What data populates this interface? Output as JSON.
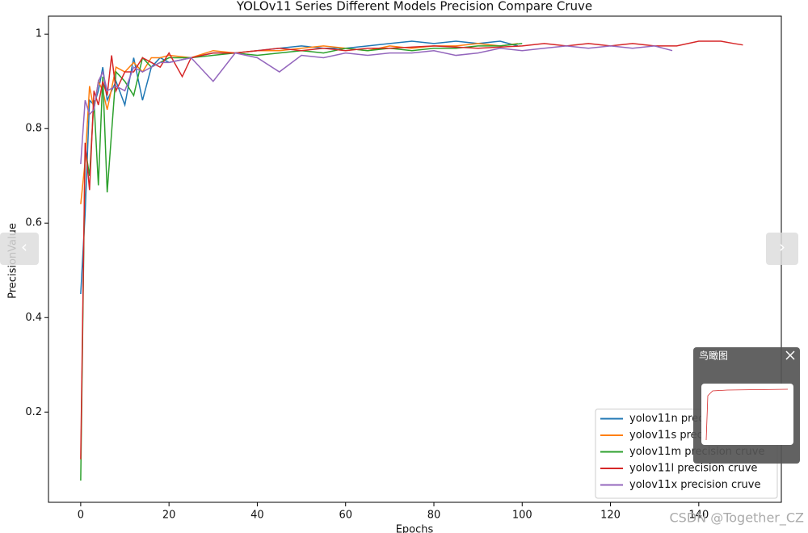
{
  "chart_data": {
    "type": "line",
    "title": "YOLOv11 Series Different Models Precision Compare Cruve",
    "x_label": "Epochs",
    "y_label": "PrecisionValue",
    "xlim": [
      -7.3,
      158.7
    ],
    "ylim": [
      0.009,
      1.038
    ],
    "xticks": [
      0,
      20,
      40,
      60,
      80,
      100,
      120,
      140
    ],
    "yticks": [
      0.2,
      0.4,
      0.6,
      0.8,
      1.0
    ],
    "legend": "lower right",
    "series": [
      {
        "name": "yolov11n precision cruve",
        "color": "#1f77b4",
        "x": [
          0,
          1,
          2,
          3,
          4,
          5,
          6,
          8,
          10,
          12,
          14,
          16,
          18,
          20,
          25,
          30,
          35,
          40,
          45,
          50,
          55,
          60,
          65,
          70,
          75,
          80,
          85,
          90,
          95,
          99
        ],
        "values": [
          0.45,
          0.62,
          0.86,
          0.85,
          0.88,
          0.93,
          0.86,
          0.9,
          0.85,
          0.95,
          0.86,
          0.93,
          0.95,
          0.94,
          0.95,
          0.96,
          0.96,
          0.965,
          0.97,
          0.975,
          0.97,
          0.97,
          0.975,
          0.98,
          0.985,
          0.98,
          0.985,
          0.98,
          0.985,
          0.975
        ]
      },
      {
        "name": "yolov11s precision cruve",
        "color": "#ff7f0e",
        "x": [
          0,
          1,
          2,
          3,
          4,
          5,
          6,
          8,
          10,
          12,
          14,
          16,
          18,
          20,
          25,
          30,
          35,
          40,
          45,
          50,
          55,
          60,
          65,
          70,
          75,
          80,
          85,
          90,
          95,
          99
        ],
        "values": [
          0.64,
          0.73,
          0.89,
          0.84,
          0.9,
          0.88,
          0.84,
          0.93,
          0.92,
          0.94,
          0.92,
          0.95,
          0.95,
          0.955,
          0.95,
          0.965,
          0.96,
          0.965,
          0.965,
          0.97,
          0.975,
          0.97,
          0.965,
          0.975,
          0.97,
          0.975,
          0.975,
          0.98,
          0.975,
          0.98
        ]
      },
      {
        "name": "yolov11m precision cruve",
        "color": "#2ca02c",
        "x": [
          0,
          1,
          2,
          3,
          4,
          5,
          6,
          8,
          10,
          12,
          14,
          16,
          18,
          20,
          25,
          30,
          35,
          40,
          45,
          50,
          55,
          60,
          65,
          70,
          75,
          80,
          85,
          90,
          95,
          100
        ],
        "values": [
          0.055,
          0.76,
          0.7,
          0.86,
          0.68,
          0.91,
          0.665,
          0.92,
          0.9,
          0.87,
          0.95,
          0.93,
          0.94,
          0.95,
          0.95,
          0.955,
          0.96,
          0.955,
          0.96,
          0.965,
          0.96,
          0.97,
          0.965,
          0.97,
          0.965,
          0.97,
          0.97,
          0.975,
          0.975,
          0.98
        ]
      },
      {
        "name": "yolov11l precision cruve",
        "color": "#d62728",
        "x": [
          0,
          1,
          2,
          3,
          4,
          5,
          6,
          7,
          8,
          10,
          12,
          14,
          16,
          18,
          20,
          23,
          25,
          30,
          35,
          40,
          45,
          50,
          55,
          60,
          65,
          70,
          80,
          90,
          100,
          105,
          110,
          115,
          120,
          125,
          130,
          135,
          140,
          145,
          148,
          150
        ],
        "values": [
          0.1,
          0.77,
          0.67,
          0.88,
          0.85,
          0.9,
          0.87,
          0.955,
          0.88,
          0.92,
          0.92,
          0.95,
          0.94,
          0.93,
          0.96,
          0.91,
          0.95,
          0.96,
          0.96,
          0.965,
          0.97,
          0.965,
          0.97,
          0.965,
          0.97,
          0.97,
          0.975,
          0.97,
          0.975,
          0.98,
          0.975,
          0.98,
          0.975,
          0.98,
          0.975,
          0.975,
          0.985,
          0.985,
          0.98,
          0.977
        ]
      },
      {
        "name": "yolov11x precision cruve",
        "color": "#9467bd",
        "x": [
          0,
          1,
          2,
          3,
          4,
          5,
          6,
          8,
          10,
          12,
          14,
          16,
          18,
          20,
          25,
          30,
          35,
          40,
          45,
          50,
          55,
          60,
          65,
          70,
          75,
          80,
          85,
          90,
          95,
          100,
          105,
          110,
          115,
          120,
          125,
          130,
          134
        ],
        "values": [
          0.725,
          0.86,
          0.83,
          0.84,
          0.9,
          0.92,
          0.88,
          0.89,
          0.88,
          0.93,
          0.92,
          0.93,
          0.94,
          0.94,
          0.95,
          0.9,
          0.96,
          0.95,
          0.92,
          0.955,
          0.95,
          0.96,
          0.955,
          0.96,
          0.96,
          0.965,
          0.955,
          0.96,
          0.97,
          0.965,
          0.97,
          0.975,
          0.97,
          0.975,
          0.97,
          0.975,
          0.965
        ]
      }
    ]
  },
  "ui": {
    "prev_button": "‹",
    "next_button": "›",
    "overview_title": "鸟瞰图",
    "watermark": "CSDN @Together_CZ"
  }
}
